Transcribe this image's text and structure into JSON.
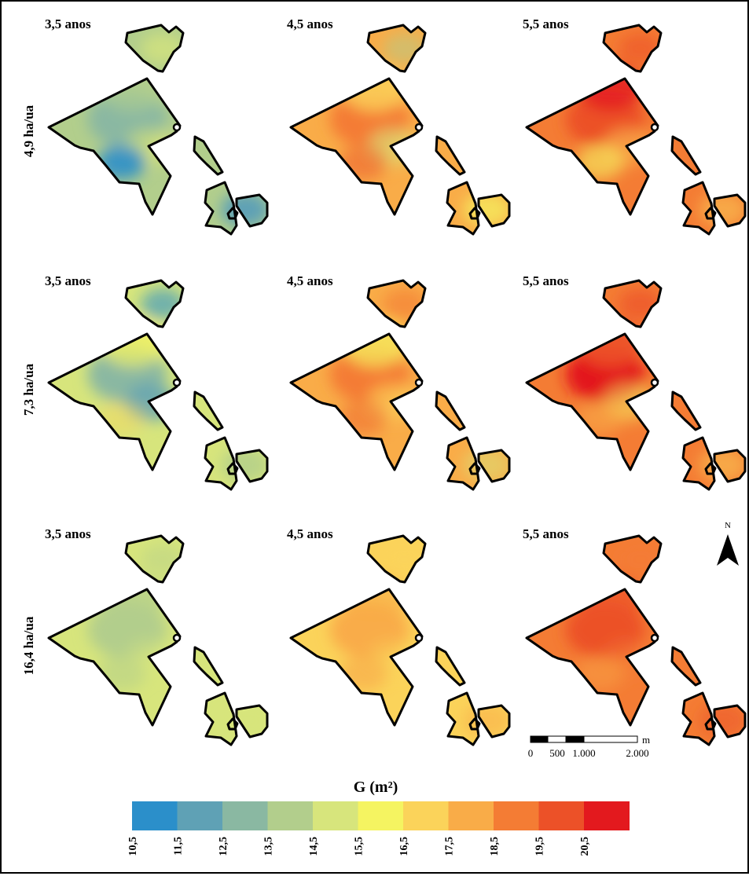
{
  "row_labels": [
    "4,9 ha/ua",
    "7,3 ha/ua",
    "16,4 ha/ua"
  ],
  "column_titles": [
    "3,5 anos",
    "4,5 anos",
    "5,5 anos"
  ],
  "legend": {
    "title": "G (m²)",
    "classes": [
      "10,5",
      "11,5",
      "12,5",
      "13,5",
      "14,5",
      "15,5",
      "16,5",
      "17,5",
      "18,5",
      "19,5",
      "20,5"
    ],
    "colors": [
      "#2b8fca",
      "#5fa1b5",
      "#8ab8a2",
      "#b2ce8c",
      "#d7e57c",
      "#f5f461",
      "#fbd35a",
      "#f9ac48",
      "#f47c34",
      "#ec5128",
      "#e3191e"
    ]
  },
  "north_arrow": {
    "label": "N"
  },
  "scale_bar": {
    "unit": "m",
    "labels": [
      "0",
      "500",
      "1.000",
      "2.000"
    ]
  },
  "maps": [
    {
      "row": "4,9 ha/ua",
      "age": "3,5 anos",
      "base_class": 3,
      "patches": [
        [
          2,
          1
        ],
        [
          3,
          0.6
        ],
        [
          5,
          0.4
        ],
        [
          0,
          0.9
        ],
        [
          1,
          1
        ],
        [
          4,
          0.7
        ]
      ]
    },
    {
      "row": "4,9 ha/ua",
      "age": "4,5 anos",
      "base_class": 7,
      "patches": [
        [
          8,
          1
        ],
        [
          6,
          0.8
        ],
        [
          4,
          0.6
        ],
        [
          9,
          0.5
        ],
        [
          5,
          0.7
        ],
        [
          3,
          0.5
        ]
      ]
    },
    {
      "row": "4,9 ha/ua",
      "age": "5,5 anos",
      "base_class": 8,
      "patches": [
        [
          9,
          1
        ],
        [
          10,
          0.8
        ],
        [
          7,
          0.7
        ],
        [
          5,
          0.6
        ],
        [
          6,
          0.5
        ],
        [
          9,
          0.6
        ]
      ]
    },
    {
      "row": "7,3 ha/ua",
      "age": "3,5 anos",
      "base_class": 4,
      "patches": [
        [
          2,
          1
        ],
        [
          5,
          0.7
        ],
        [
          1,
          0.8
        ],
        [
          6,
          0.4
        ],
        [
          3,
          0.8
        ],
        [
          0,
          0.6
        ]
      ]
    },
    {
      "row": "7,3 ha/ua",
      "age": "4,5 anos",
      "base_class": 7,
      "patches": [
        [
          8,
          1
        ],
        [
          5,
          0.7
        ],
        [
          6,
          0.6
        ],
        [
          9,
          0.4
        ],
        [
          4,
          0.5
        ],
        [
          8,
          0.6
        ]
      ]
    },
    {
      "row": "7,3 ha/ua",
      "age": "5,5 anos",
      "base_class": 8,
      "patches": [
        [
          10,
          1
        ],
        [
          9,
          0.9
        ],
        [
          5,
          0.5
        ],
        [
          7,
          0.6
        ],
        [
          6,
          0.5
        ],
        [
          9,
          0.7
        ]
      ]
    },
    {
      "row": "16,4 ha/ua",
      "age": "3,5 anos",
      "base_class": 4,
      "patches": [
        [
          3,
          1
        ],
        [
          3,
          0.7
        ],
        [
          4,
          0.4
        ],
        [
          3,
          0.5
        ],
        [
          4,
          0.3
        ],
        [
          3,
          0.4
        ]
      ]
    },
    {
      "row": "16,4 ha/ua",
      "age": "4,5 anos",
      "base_class": 6,
      "patches": [
        [
          7,
          1
        ],
        [
          7,
          0.6
        ],
        [
          6,
          0.4
        ],
        [
          8,
          0.3
        ],
        [
          7,
          0.5
        ],
        [
          6,
          0.3
        ]
      ]
    },
    {
      "row": "16,4 ha/ua",
      "age": "5,5 anos",
      "base_class": 8,
      "patches": [
        [
          9,
          1
        ],
        [
          9,
          0.7
        ],
        [
          8,
          0.4
        ],
        [
          7,
          0.4
        ],
        [
          9,
          0.5
        ],
        [
          8,
          0.3
        ]
      ]
    }
  ]
}
